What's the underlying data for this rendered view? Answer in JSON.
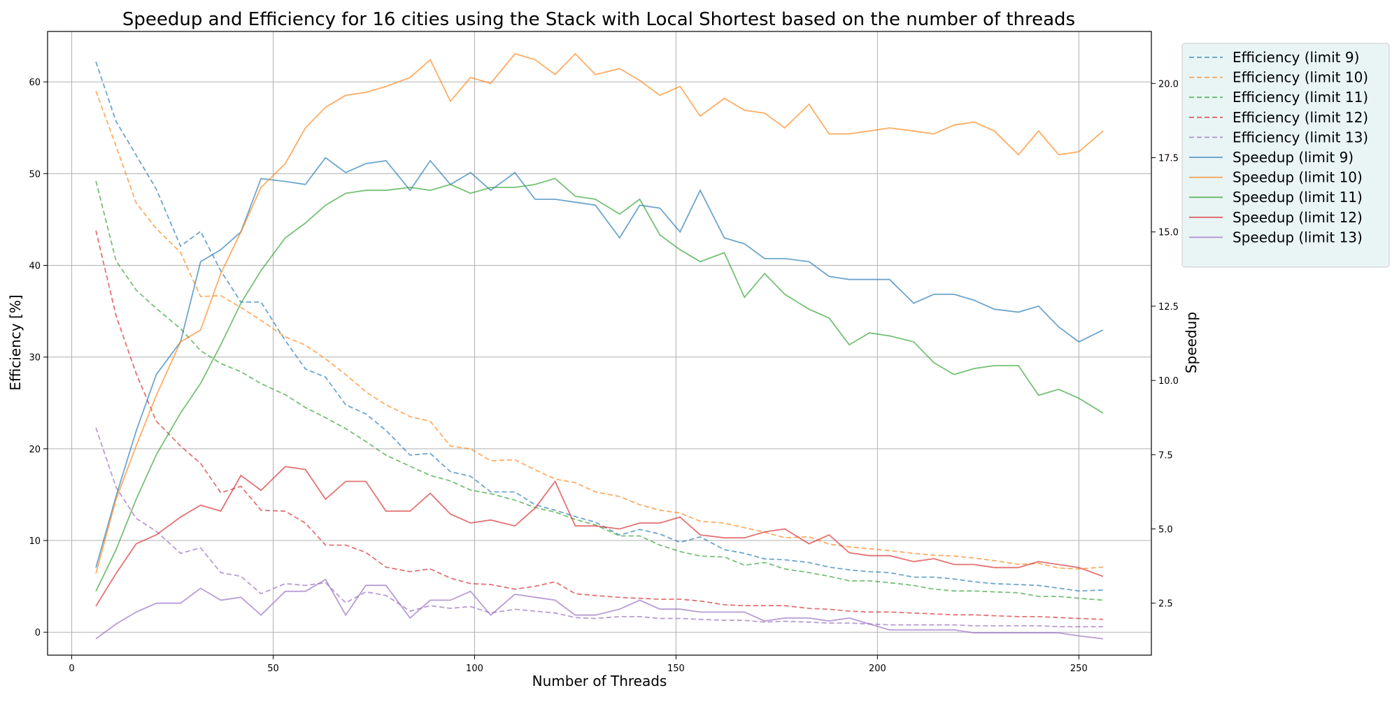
{
  "chart_data": {
    "type": "line",
    "title": "Speedup and Efficiency for 16 cities using the Stack with Local Shortest based on the number of threads",
    "xlabel": "Number of Threads",
    "ylabel_left": "Efficiency [%]",
    "ylabel_right": "Speedup",
    "xlim": [
      -6,
      268
    ],
    "ylim_left": [
      -2.5,
      65.5
    ],
    "ylim_right": [
      0.75,
      21.75
    ],
    "xticks": [
      0,
      50,
      100,
      150,
      200,
      250
    ],
    "yticks_left": [
      0,
      10,
      20,
      30,
      40,
      50,
      60
    ],
    "yticks_right": [
      2.5,
      5.0,
      7.5,
      10.0,
      12.5,
      15.0,
      17.5,
      20.0
    ],
    "yticks_right_labels": [
      "2.5",
      "5.0",
      "7.5",
      "10.0",
      "12.5",
      "15.0",
      "17.5",
      "20.0"
    ],
    "grid": true,
    "legend_position": "outside-right-top",
    "x": [
      6,
      11,
      16,
      21,
      27,
      32,
      37,
      42,
      47,
      53,
      58,
      63,
      68,
      73,
      78,
      84,
      89,
      94,
      99,
      104,
      110,
      115,
      120,
      125,
      130,
      136,
      141,
      146,
      151,
      156,
      162,
      167,
      172,
      177,
      183,
      188,
      193,
      198,
      203,
      209,
      214,
      219,
      224,
      229,
      235,
      240,
      245,
      250,
      256
    ],
    "efficiency_series": [
      {
        "name": "Efficiency (limit 9)",
        "color": "#1f77b4",
        "axis": "left",
        "style": "dashed",
        "values": [
          62.2,
          55.7,
          52.0,
          48.3,
          42.1,
          43.7,
          39.4,
          36.0,
          36.0,
          31.8,
          28.7,
          27.8,
          24.8,
          23.8,
          22.0,
          19.3,
          19.5,
          17.5,
          17.0,
          15.3,
          15.3,
          13.9,
          13.3,
          12.6,
          12.0,
          10.6,
          11.2,
          10.7,
          9.8,
          10.4,
          9.0,
          8.6,
          8.0,
          7.9,
          7.6,
          7.1,
          6.8,
          6.6,
          6.5,
          6.0,
          6.0,
          5.8,
          5.5,
          5.3,
          5.2,
          5.1,
          4.8,
          4.5,
          4.6
        ]
      },
      {
        "name": "Efficiency (limit 10)",
        "color": "#ff7f0e",
        "axis": "left",
        "style": "dashed",
        "values": [
          59.0,
          53.0,
          46.8,
          44.0,
          41.4,
          36.6,
          36.7,
          35.4,
          34.0,
          32.2,
          31.3,
          29.8,
          28.1,
          26.2,
          24.8,
          23.5,
          23.0,
          20.3,
          20.0,
          18.7,
          18.8,
          17.7,
          16.7,
          16.3,
          15.3,
          14.8,
          13.9,
          13.3,
          13.0,
          12.1,
          11.9,
          11.4,
          10.9,
          10.3,
          10.4,
          9.6,
          9.3,
          9.1,
          8.9,
          8.6,
          8.4,
          8.3,
          8.1,
          7.8,
          7.4,
          7.5,
          7.0,
          6.9,
          7.1
        ]
      },
      {
        "name": "Efficiency (limit 11)",
        "color": "#2ca02c",
        "axis": "left",
        "style": "dashed",
        "values": [
          49.2,
          40.5,
          37.3,
          35.3,
          33.1,
          30.7,
          29.3,
          28.4,
          27.1,
          25.9,
          24.5,
          23.4,
          22.2,
          20.8,
          19.3,
          18.1,
          17.1,
          16.5,
          15.5,
          15.1,
          14.4,
          13.6,
          13.1,
          12.3,
          11.7,
          10.5,
          10.5,
          9.5,
          8.8,
          8.3,
          8.2,
          7.3,
          7.6,
          6.9,
          6.5,
          6.1,
          5.6,
          5.6,
          5.4,
          5.1,
          4.7,
          4.5,
          4.5,
          4.4,
          4.3,
          3.9,
          3.9,
          3.7,
          3.5
        ]
      },
      {
        "name": "Efficiency (limit 12)",
        "color": "#d62728",
        "axis": "left",
        "style": "dashed",
        "values": [
          43.8,
          34.5,
          28.2,
          23.0,
          20.3,
          18.4,
          15.2,
          15.9,
          13.3,
          13.2,
          11.9,
          9.5,
          9.5,
          8.7,
          7.1,
          6.6,
          6.9,
          5.9,
          5.3,
          5.2,
          4.7,
          5.0,
          5.5,
          4.2,
          4.0,
          3.8,
          3.7,
          3.6,
          3.6,
          3.4,
          3.0,
          2.9,
          2.9,
          2.9,
          2.6,
          2.5,
          2.3,
          2.2,
          2.2,
          2.1,
          2.0,
          1.9,
          1.9,
          1.8,
          1.7,
          1.7,
          1.6,
          1.5,
          1.4
        ]
      },
      {
        "name": "Efficiency (limit 13)",
        "color": "#9467bd",
        "axis": "left",
        "style": "dashed",
        "values": [
          22.3,
          15.8,
          12.4,
          11.0,
          8.6,
          9.2,
          6.5,
          6.1,
          4.2,
          5.3,
          5.1,
          5.4,
          3.2,
          4.4,
          4.0,
          2.3,
          2.9,
          2.6,
          2.8,
          2.1,
          2.5,
          2.3,
          2.1,
          1.6,
          1.5,
          1.7,
          1.7,
          1.5,
          1.5,
          1.4,
          1.3,
          1.3,
          1.1,
          1.2,
          1.1,
          1.0,
          1.0,
          0.9,
          0.8,
          0.8,
          0.8,
          0.8,
          0.7,
          0.7,
          0.7,
          0.7,
          0.6,
          0.6,
          0.6
        ]
      }
    ],
    "speedup_series": [
      {
        "name": "Speedup (limit 9)",
        "color": "#1f77b4",
        "axis": "right",
        "style": "solid",
        "values": [
          3.7,
          6.1,
          8.3,
          10.2,
          11.3,
          14.0,
          14.4,
          15.0,
          16.8,
          16.7,
          16.6,
          17.5,
          17.0,
          17.3,
          17.4,
          16.4,
          17.4,
          16.6,
          17.0,
          16.4,
          17.0,
          16.1,
          16.1,
          16.0,
          15.9,
          14.8,
          15.9,
          15.8,
          15.0,
          16.4,
          14.8,
          14.6,
          14.1,
          14.1,
          14.0,
          13.5,
          13.4,
          13.4,
          13.4,
          12.6,
          12.9,
          12.9,
          12.7,
          12.4,
          12.3,
          12.5,
          11.8,
          11.3,
          11.7
        ]
      },
      {
        "name": "Speedup (limit 10)",
        "color": "#ff7f0e",
        "axis": "right",
        "style": "solid",
        "values": [
          3.5,
          6.0,
          7.8,
          9.5,
          11.3,
          11.7,
          13.6,
          15.0,
          16.5,
          17.3,
          18.5,
          19.2,
          19.6,
          19.7,
          19.9,
          20.2,
          20.8,
          19.4,
          20.2,
          20.0,
          21.0,
          20.8,
          20.3,
          21.0,
          20.3,
          20.5,
          20.1,
          19.6,
          19.9,
          18.9,
          19.5,
          19.1,
          19.0,
          18.5,
          19.3,
          18.3,
          18.3,
          18.4,
          18.5,
          18.4,
          18.3,
          18.6,
          18.7,
          18.4,
          17.6,
          18.4,
          17.6,
          17.7,
          18.4
        ]
      },
      {
        "name": "Speedup (limit 11)",
        "color": "#2ca02c",
        "axis": "right",
        "style": "solid",
        "values": [
          2.9,
          4.3,
          6.0,
          7.5,
          8.9,
          9.9,
          11.2,
          12.6,
          13.7,
          14.8,
          15.3,
          15.9,
          16.3,
          16.4,
          16.4,
          16.5,
          16.4,
          16.6,
          16.3,
          16.5,
          16.5,
          16.6,
          16.8,
          16.2,
          16.1,
          15.6,
          16.1,
          14.9,
          14.4,
          14.0,
          14.3,
          12.8,
          13.6,
          12.9,
          12.4,
          12.1,
          11.2,
          11.6,
          11.5,
          11.3,
          10.6,
          10.2,
          10.4,
          10.5,
          10.5,
          9.5,
          9.7,
          9.4,
          8.9
        ]
      },
      {
        "name": "Speedup (limit 12)",
        "color": "#d62728",
        "axis": "right",
        "style": "solid",
        "values": [
          2.4,
          3.5,
          4.5,
          4.8,
          5.4,
          5.8,
          5.6,
          6.8,
          6.3,
          7.1,
          7.0,
          6.0,
          6.6,
          6.6,
          5.6,
          5.6,
          6.2,
          5.5,
          5.2,
          5.3,
          5.1,
          5.7,
          6.6,
          5.1,
          5.1,
          5.0,
          5.2,
          5.2,
          5.4,
          4.8,
          4.7,
          4.7,
          4.9,
          5.0,
          4.5,
          4.8,
          4.2,
          4.1,
          4.1,
          3.9,
          4.0,
          3.8,
          3.8,
          3.7,
          3.7,
          3.9,
          3.8,
          3.7,
          3.4
        ]
      },
      {
        "name": "Speedup (limit 13)",
        "color": "#9467bd",
        "axis": "right",
        "style": "solid",
        "values": [
          1.3,
          1.8,
          2.2,
          2.5,
          2.5,
          3.0,
          2.6,
          2.7,
          2.1,
          2.9,
          2.9,
          3.3,
          2.1,
          3.1,
          3.1,
          2.0,
          2.6,
          2.6,
          2.9,
          2.1,
          2.8,
          2.7,
          2.6,
          2.1,
          2.1,
          2.3,
          2.6,
          2.3,
          2.3,
          2.2,
          2.2,
          2.2,
          1.9,
          2.0,
          2.0,
          1.9,
          2.0,
          1.8,
          1.6,
          1.6,
          1.6,
          1.6,
          1.5,
          1.5,
          1.5,
          1.5,
          1.5,
          1.4,
          1.3
        ]
      }
    ]
  }
}
